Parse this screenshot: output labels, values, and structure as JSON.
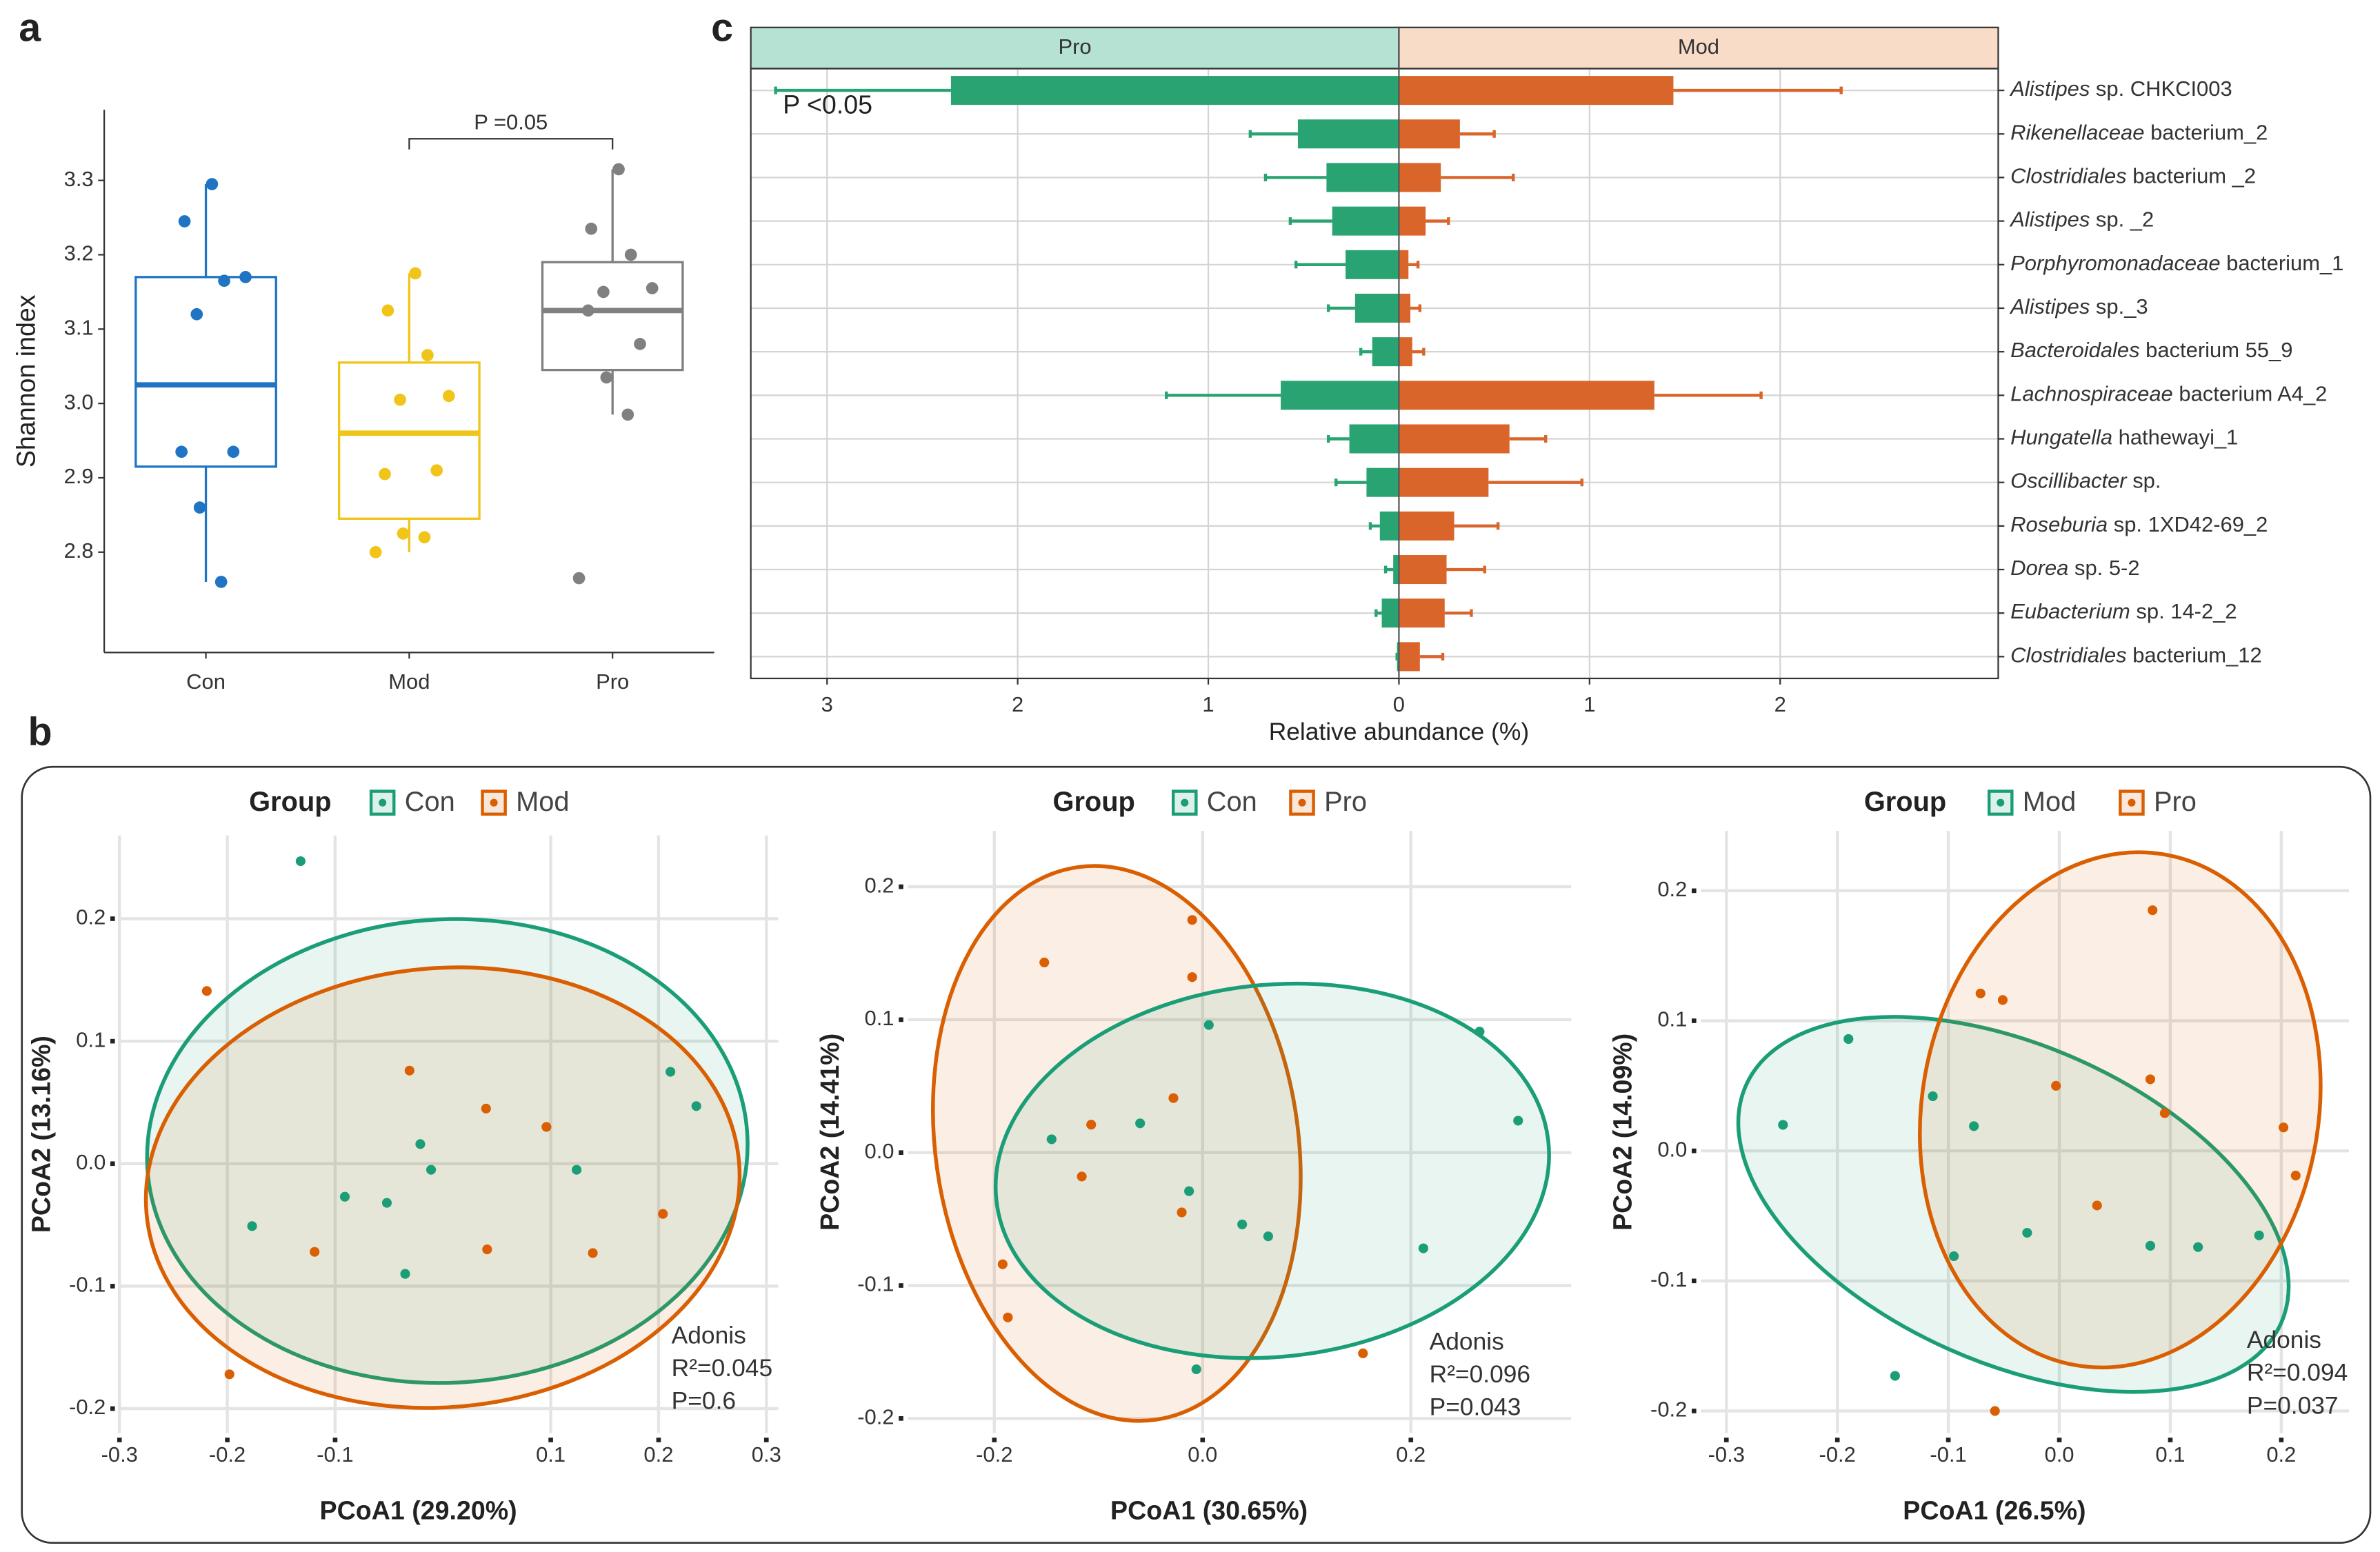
{
  "panel_labels": [
    "a",
    "b",
    "c"
  ],
  "chart_data": [
    {
      "type": "box",
      "ylabel": "Shannon index",
      "categories": [
        "Con",
        "Mod",
        "Pro"
      ],
      "boxes": [
        {
          "color": "#1f74c4",
          "whisker_low": 2.76,
          "q1": 2.915,
          "median": 3.025,
          "q3": 3.17,
          "whisker_high": 3.295,
          "points": [
            3.295,
            3.245,
            3.165,
            3.17,
            3.12,
            2.935,
            2.935,
            2.86,
            2.76
          ]
        },
        {
          "color": "#f0c419",
          "whisker_low": 2.8,
          "q1": 2.845,
          "median": 2.96,
          "q3": 3.055,
          "whisker_high": 3.175,
          "points": [
            3.175,
            3.125,
            3.065,
            3.01,
            3.005,
            2.905,
            2.91,
            2.825,
            2.82,
            2.8
          ]
        },
        {
          "color": "#808080",
          "whisker_low": 2.985,
          "q1": 3.045,
          "median": 3.125,
          "q3": 3.19,
          "whisker_high": 3.315,
          "points": [
            3.315,
            3.235,
            3.2,
            3.155,
            3.15,
            3.125,
            3.08,
            3.035,
            2.985,
            2.765
          ]
        }
      ],
      "ylim": [
        2.665,
        3.395
      ],
      "yticks": [
        2.8,
        2.9,
        {
          "value": 3,
          "label": "3.0"
        },
        3.1,
        3.2,
        3.3
      ],
      "annotation": "P =0.05"
    },
    {
      "type": "diverging_bar",
      "xlabel": "Relative abundance (%)",
      "annotation": "P <0.05",
      "categories": [
        "Alistipes sp. CHKCI003",
        "Rikenellaceae bacterium_2",
        "Clostridiales bacterium _2",
        "Alistipes sp. _2",
        "Porphyromonadaceae bacterium_1",
        "Alistipes sp._3",
        "Bacteroidales bacterium 55_9",
        "Lachnospiraceae bacterium A4_2",
        "Hungatella hathewayi_1",
        "Oscillibacter sp.",
        "Roseburia sp. 1XD42-69_2",
        "Dorea sp. 5-2",
        "Eubacterium sp. 14-2_2",
        "Clostridiales bacterium_12"
      ],
      "series": [
        {
          "name": "Pro",
          "color": "#2aa372",
          "strip_color": "#b5e2d2",
          "values": [
            2.35,
            0.53,
            0.38,
            0.35,
            0.28,
            0.23,
            0.14,
            0.62,
            0.26,
            0.17,
            0.1,
            0.03,
            0.09,
            0.01
          ],
          "errors": [
            0.92,
            0.25,
            0.32,
            0.22,
            0.26,
            0.14,
            0.06,
            0.6,
            0.11,
            0.16,
            0.05,
            0.04,
            0.03,
            0
          ]
        },
        {
          "name": "Mod",
          "color": "#d9652b",
          "strip_color": "#f8dcc8",
          "values": [
            1.44,
            0.32,
            0.22,
            0.14,
            0.05,
            0.06,
            0.07,
            1.34,
            0.58,
            0.47,
            0.29,
            0.25,
            0.24,
            0.11
          ],
          "errors": [
            0.88,
            0.18,
            0.38,
            0.12,
            0.05,
            0.05,
            0.06,
            0.56,
            0.19,
            0.49,
            0.23,
            0.2,
            0.14,
            0.12
          ]
        }
      ],
      "xlim": [
        -3.4,
        3.144
      ],
      "xticks": [
        {
          "value": -3,
          "label": "3"
        },
        {
          "value": -2,
          "label": "2"
        },
        {
          "value": -1,
          "label": "1"
        },
        0,
        1,
        2
      ],
      "grid": true
    },
    {
      "type": "scatter",
      "legend_title": "Group",
      "xlabel": "PCoA1 (29.20%)",
      "ylabel": "PCoA2 (13.16%)",
      "annotation": [
        "Adonis",
        "R²=0.045",
        "P=0.6"
      ],
      "series": [
        {
          "name": "Con",
          "color": "#1b9e77",
          "x": [
            -0.132,
            0.211,
            0.235,
            -0.021,
            -0.011,
            -0.091,
            -0.052,
            -0.177,
            0.124,
            -0.035
          ],
          "y": [
            0.247,
            0.075,
            0.047,
            0.016,
            -0.005,
            -0.027,
            -0.032,
            -0.051,
            -0.005,
            -0.09
          ]
        },
        {
          "name": "Mod",
          "color": "#d95f02",
          "x": [
            -0.219,
            -0.031,
            0.04,
            0.096,
            0.204,
            -0.119,
            0.041,
            0.139,
            -0.198
          ],
          "y": [
            0.141,
            0.076,
            0.045,
            0.03,
            -0.041,
            -0.072,
            -0.07,
            -0.073,
            -0.172
          ]
        }
      ],
      "xlim": [
        -0.3,
        0.311
      ],
      "ylim": [
        -0.22,
        0.268
      ],
      "xticks": [
        -0.3,
        -0.2,
        -0.1,
        0.1,
        0.2,
        0.3
      ],
      "yticks": [
        0.2,
        0.1,
        {
          "value": 0,
          "label": "0.0"
        },
        -0.1,
        -0.2
      ],
      "grid": true
    },
    {
      "type": "scatter",
      "legend_title": "Group",
      "xlabel": "PCoA1 (30.65%)",
      "ylabel": "PCoA2 (14.41%)",
      "annotation": [
        "Adonis",
        "R²=0.096",
        "P=0.043"
      ],
      "series": [
        {
          "name": "Con",
          "color": "#1b9e77",
          "x": [
            0.006,
            0.266,
            0.303,
            -0.145,
            -0.06,
            -0.013,
            0.038,
            0.063,
            0.212,
            -0.006
          ],
          "y": [
            0.096,
            0.091,
            0.024,
            0.01,
            0.022,
            -0.029,
            -0.054,
            -0.063,
            -0.072,
            -0.163
          ]
        },
        {
          "name": "Pro",
          "color": "#d95f02",
          "x": [
            -0.01,
            -0.152,
            -0.01,
            -0.028,
            -0.107,
            -0.116,
            -0.02,
            -0.192,
            -0.187,
            0.154
          ],
          "y": [
            0.175,
            0.143,
            0.132,
            0.041,
            0.021,
            -0.018,
            -0.045,
            -0.084,
            -0.124,
            -0.151
          ]
        }
      ],
      "xlim": [
        -0.283,
        0.354
      ],
      "ylim": [
        -0.211,
        0.242
      ],
      "xticks": [
        -0.2,
        {
          "value": 0,
          "label": "0.0"
        },
        0.2
      ],
      "yticks": [
        0.2,
        0.1,
        {
          "value": 0,
          "label": "0.0"
        },
        -0.1,
        -0.2
      ],
      "grid": true
    },
    {
      "type": "scatter",
      "legend_title": "Group",
      "xlabel": "PCoA1 (26.5%)",
      "ylabel": "PCoA2 (14.09%)",
      "annotation": [
        "Adonis",
        "R²=0.094",
        "P=0.037"
      ],
      "series": [
        {
          "name": "Mod",
          "color": "#1b9e77",
          "x": [
            -0.19,
            -0.249,
            -0.114,
            -0.077,
            -0.029,
            -0.095,
            0.082,
            0.125,
            0.18,
            -0.148
          ],
          "y": [
            0.086,
            0.02,
            0.042,
            0.019,
            -0.063,
            -0.081,
            -0.073,
            -0.074,
            -0.065,
            -0.173
          ]
        },
        {
          "name": "Pro",
          "color": "#d95f02",
          "x": [
            0.084,
            -0.071,
            -0.051,
            -0.003,
            0.082,
            0.095,
            0.202,
            0.213,
            0.034,
            -0.058
          ],
          "y": [
            0.185,
            0.121,
            0.116,
            0.05,
            0.055,
            0.029,
            0.018,
            -0.019,
            -0.042,
            -0.2
          ]
        }
      ],
      "xlim": [
        -0.323,
        0.261
      ],
      "ylim": [
        -0.217,
        0.246
      ],
      "xticks": [
        -0.3,
        -0.2,
        -0.1,
        {
          "value": 0,
          "label": "0.0"
        },
        0.1,
        0.2
      ],
      "yticks": [
        0.2,
        0.1,
        {
          "value": 0,
          "label": "0.0"
        },
        -0.1,
        -0.2
      ],
      "grid": true
    }
  ]
}
